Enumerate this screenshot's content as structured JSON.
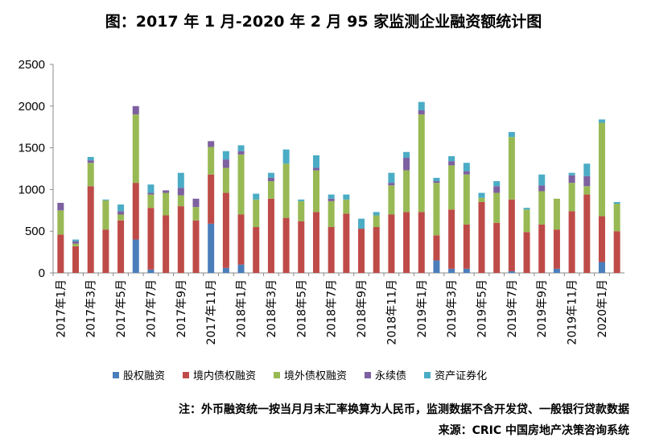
{
  "chart_data": {
    "type": "bar",
    "stacked": true,
    "title": "图：2017 年 1 月-2020 年 2 月 95 家监测企业融资额统计图",
    "ylim": [
      0,
      2500
    ],
    "yticks": [
      "0",
      "500",
      "1000",
      "1500",
      "2000",
      "2500"
    ],
    "legend_position": "bottom",
    "grid": false,
    "categories": [
      "2017年1月",
      "2017年2月",
      "2017年3月",
      "2017年4月",
      "2017年5月",
      "2017年6月",
      "2017年7月",
      "2017年8月",
      "2017年9月",
      "2017年10月",
      "2017年11月",
      "2017年12月",
      "2018年1月",
      "2018年2月",
      "2018年3月",
      "2018年4月",
      "2018年5月",
      "2018年6月",
      "2018年7月",
      "2018年8月",
      "2018年9月",
      "2018年10月",
      "2018年11月",
      "2018年12月",
      "2019年1月",
      "2019年2月",
      "2019年3月",
      "2019年4月",
      "2019年5月",
      "2019年6月",
      "2019年7月",
      "2019年8月",
      "2019年9月",
      "2019年10月",
      "2019年11月",
      "2019年12月",
      "2020年1月",
      "2020年2月"
    ],
    "xtick_labels": [
      "2017年1月",
      "2017年3月",
      "2017年5月",
      "2017年7月",
      "2017年9月",
      "2017年11月",
      "2018年1月",
      "2018年3月",
      "2018年5月",
      "2018年7月",
      "2018年9月",
      "2018年11月",
      "2019年1月",
      "2019年3月",
      "2019年5月",
      "2019年7月",
      "2019年9月",
      "2019年11月",
      "2020年1月"
    ],
    "series": [
      {
        "name": "股权融资",
        "color": "#4a7ebb",
        "values": [
          0,
          0,
          0,
          0,
          0,
          400,
          40,
          0,
          0,
          0,
          590,
          60,
          100,
          0,
          0,
          0,
          0,
          0,
          0,
          0,
          0,
          0,
          0,
          0,
          0,
          150,
          50,
          50,
          0,
          0,
          20,
          0,
          0,
          50,
          0,
          0,
          130,
          0
        ]
      },
      {
        "name": "境内债权融资",
        "color": "#be4b48",
        "values": [
          460,
          320,
          1040,
          520,
          630,
          680,
          740,
          690,
          800,
          630,
          590,
          900,
          600,
          550,
          890,
          660,
          620,
          730,
          550,
          710,
          530,
          550,
          700,
          730,
          730,
          300,
          710,
          530,
          850,
          600,
          860,
          490,
          580,
          470,
          740,
          940,
          550,
          500
        ]
      },
      {
        "name": "境外债权融资",
        "color": "#98b954",
        "values": [
          290,
          30,
          280,
          350,
          70,
          820,
          160,
          270,
          130,
          160,
          330,
          300,
          720,
          330,
          210,
          650,
          240,
          500,
          310,
          170,
          0,
          140,
          350,
          500,
          1170,
          630,
          530,
          600,
          50,
          360,
          750,
          270,
          400,
          370,
          340,
          100,
          1120,
          330
        ]
      },
      {
        "name": "永续债",
        "color": "#7d60a0",
        "values": [
          90,
          30,
          30,
          0,
          40,
          100,
          20,
          30,
          90,
          100,
          70,
          100,
          40,
          0,
          40,
          0,
          0,
          30,
          30,
          0,
          0,
          0,
          30,
          150,
          50,
          20,
          50,
          40,
          0,
          80,
          0,
          0,
          70,
          0,
          90,
          120,
          0,
          0
        ]
      },
      {
        "name": "资产证券化",
        "color": "#4bacc6",
        "values": [
          0,
          20,
          40,
          10,
          80,
          0,
          100,
          0,
          180,
          0,
          0,
          100,
          70,
          70,
          60,
          170,
          20,
          150,
          50,
          60,
          120,
          40,
          120,
          70,
          100,
          40,
          60,
          100,
          60,
          60,
          60,
          20,
          130,
          0,
          30,
          150,
          40,
          20
        ]
      }
    ]
  },
  "note": "注：外币融资统一按当月月末汇率换算为人民币，监测数据不含开发贷、一般银行贷款数据",
  "source": "来源：CRIC 中国房地产决策咨询系统"
}
